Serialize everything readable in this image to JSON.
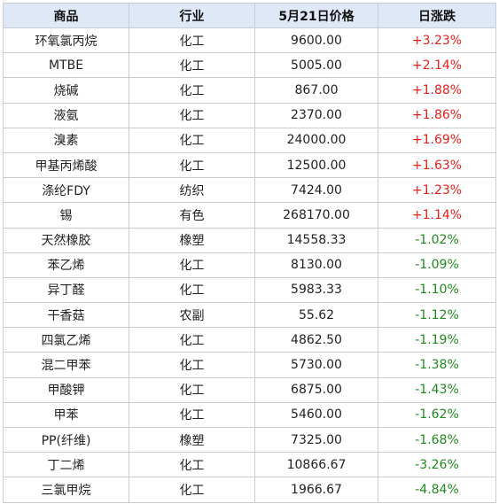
{
  "headers": [
    "商品",
    "行业",
    "5月21日价格",
    "日涨跌"
  ],
  "colors": {
    "up": "#e0221e",
    "down": "#1e8a1e",
    "header_bg": "#dfe8f7"
  },
  "rows": [
    {
      "name": "环氧氯丙烷",
      "industry": "化工",
      "price": "9600.00",
      "change": "+3.23%"
    },
    {
      "name": "MTBE",
      "industry": "化工",
      "price": "5005.00",
      "change": "+2.14%"
    },
    {
      "name": "烧碱",
      "industry": "化工",
      "price": "867.00",
      "change": "+1.88%"
    },
    {
      "name": "液氨",
      "industry": "化工",
      "price": "2370.00",
      "change": "+1.86%"
    },
    {
      "name": "溴素",
      "industry": "化工",
      "price": "24000.00",
      "change": "+1.69%"
    },
    {
      "name": "甲基丙烯酸",
      "industry": "化工",
      "price": "12500.00",
      "change": "+1.63%"
    },
    {
      "name": "涤纶FDY",
      "industry": "纺织",
      "price": "7424.00",
      "change": "+1.23%"
    },
    {
      "name": "锡",
      "industry": "有色",
      "price": "268170.00",
      "change": "+1.14%"
    },
    {
      "name": "天然橡胶",
      "industry": "橡塑",
      "price": "14558.33",
      "change": "-1.02%"
    },
    {
      "name": "苯乙烯",
      "industry": "化工",
      "price": "8130.00",
      "change": "-1.09%"
    },
    {
      "name": "异丁醛",
      "industry": "化工",
      "price": "5983.33",
      "change": "-1.10%"
    },
    {
      "name": "干香菇",
      "industry": "农副",
      "price": "55.62",
      "change": "-1.12%"
    },
    {
      "name": "四氯乙烯",
      "industry": "化工",
      "price": "4862.50",
      "change": "-1.19%"
    },
    {
      "name": "混二甲苯",
      "industry": "化工",
      "price": "5730.00",
      "change": "-1.38%"
    },
    {
      "name": "甲酸钾",
      "industry": "化工",
      "price": "6875.00",
      "change": "-1.43%"
    },
    {
      "name": "甲苯",
      "industry": "化工",
      "price": "5460.00",
      "change": "-1.62%"
    },
    {
      "name": "PP(纤维)",
      "industry": "橡塑",
      "price": "7325.00",
      "change": "-1.68%"
    },
    {
      "name": "丁二烯",
      "industry": "化工",
      "price": "10866.67",
      "change": "-3.26%"
    },
    {
      "name": "三氯甲烷",
      "industry": "化工",
      "price": "1966.67",
      "change": "-4.84%"
    }
  ]
}
